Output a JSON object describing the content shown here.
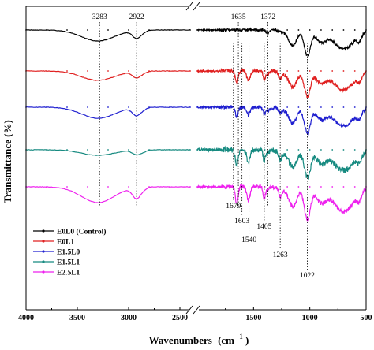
{
  "chart_data": {
    "type": "line",
    "title": "",
    "xlabel": "Wavenumbers",
    "xlabel_unit": "(cm",
    "xlabel_unit_sup": "-1",
    "xlabel_unit_close": ")",
    "ylabel": "Transmittance (%)",
    "x_reversed": true,
    "x_axis_break": [
      2400,
      2000
    ],
    "xlim": [
      4000,
      500
    ],
    "x_ticks": [
      "4000",
      "3500",
      "3000",
      "2500",
      "1500",
      "1000",
      "500"
    ],
    "grid": false,
    "legend_position": "bottom-left",
    "series": [
      {
        "name": "E0L0 (Control)",
        "color": "#000000"
      },
      {
        "name": "E0L1",
        "color": "#e02020"
      },
      {
        "name": "E1.5L0",
        "color": "#2020d0"
      },
      {
        "name": "E1.5L1",
        "color": "#168a80"
      },
      {
        "name": "E2.5L1",
        "color": "#ee22ee"
      }
    ],
    "peaks_top": [
      {
        "label": "3283",
        "x": 3283
      },
      {
        "label": "2922",
        "x": 2922
      },
      {
        "label": "1635",
        "x": 1635
      },
      {
        "label": "1372",
        "x": 1372
      }
    ],
    "peaks_bottom": [
      {
        "label": "1679",
        "x": 1679
      },
      {
        "label": "1603",
        "x": 1603
      },
      {
        "label": "1540",
        "x": 1540
      },
      {
        "label": "1405",
        "x": 1405
      },
      {
        "label": "1263",
        "x": 1263
      },
      {
        "label": "1022",
        "x": 1022
      }
    ]
  }
}
